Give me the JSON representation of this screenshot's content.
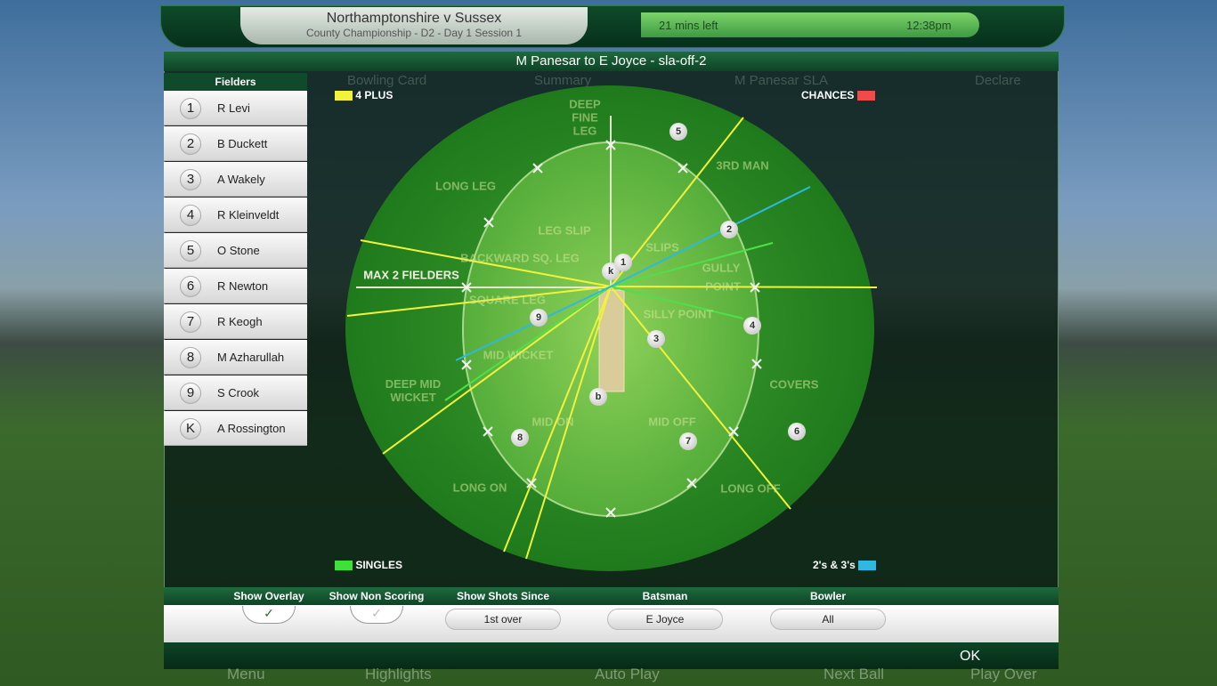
{
  "header": {
    "match": "Northamptonshire v Sussex",
    "competition": "County Championship - D2 - Day 1 Session 1",
    "time_left": "21 mins left",
    "clock": "12:38pm"
  },
  "background_tabs": [
    "Bowling Card",
    "Summary",
    "M Panesar SLA",
    "Declare"
  ],
  "dialog": {
    "title": "M Panesar to E Joyce - sla-off-2"
  },
  "fielders": {
    "title": "Fielders",
    "list": [
      {
        "num": "1",
        "name": "R Levi"
      },
      {
        "num": "2",
        "name": "B Duckett"
      },
      {
        "num": "3",
        "name": "A Wakely"
      },
      {
        "num": "4",
        "name": "R Kleinveldt"
      },
      {
        "num": "5",
        "name": "O Stone"
      },
      {
        "num": "6",
        "name": "R Newton"
      },
      {
        "num": "7",
        "name": "R Keogh"
      },
      {
        "num": "8",
        "name": "M Azharullah"
      },
      {
        "num": "9",
        "name": "S Crook"
      },
      {
        "num": "K",
        "name": "A Rossington"
      }
    ]
  },
  "legend": {
    "four_plus": "4 PLUS",
    "chances": "CHANCES",
    "singles": "SINGLES",
    "twos_threes": "2's & 3's"
  },
  "field_positions": [
    "DEEP FINE LEG",
    "LONG LEG",
    "3RD MAN",
    "LEG SLIP",
    "SLIPS",
    "BACKWARD SQ. LEG",
    "GULLY",
    "POINT",
    "SQUARE LEG",
    "SILLY POINT",
    "MID WICKET",
    "DEEP MID WICKET",
    "COVERS",
    "MID ON",
    "MID OFF",
    "LONG ON",
    "LONG OFF"
  ],
  "max_label": "MAX 2 FIELDERS",
  "markers": [
    "5",
    "2",
    "k",
    "1",
    "9",
    "3",
    "4",
    "b",
    "8",
    "7",
    "6"
  ],
  "controls": {
    "show_overlay": "Show Overlay",
    "show_non_scoring": "Show Non Scoring",
    "shots_since": {
      "label": "Show Shots Since",
      "value": "1st over"
    },
    "batsman": {
      "label": "Batsman",
      "value": "E Joyce"
    },
    "bowler": {
      "label": "Bowler",
      "value": "All"
    }
  },
  "ok": "OK",
  "nav": [
    "Menu",
    "Highlights",
    "Auto Play",
    "Next Ball",
    "Play Over"
  ]
}
